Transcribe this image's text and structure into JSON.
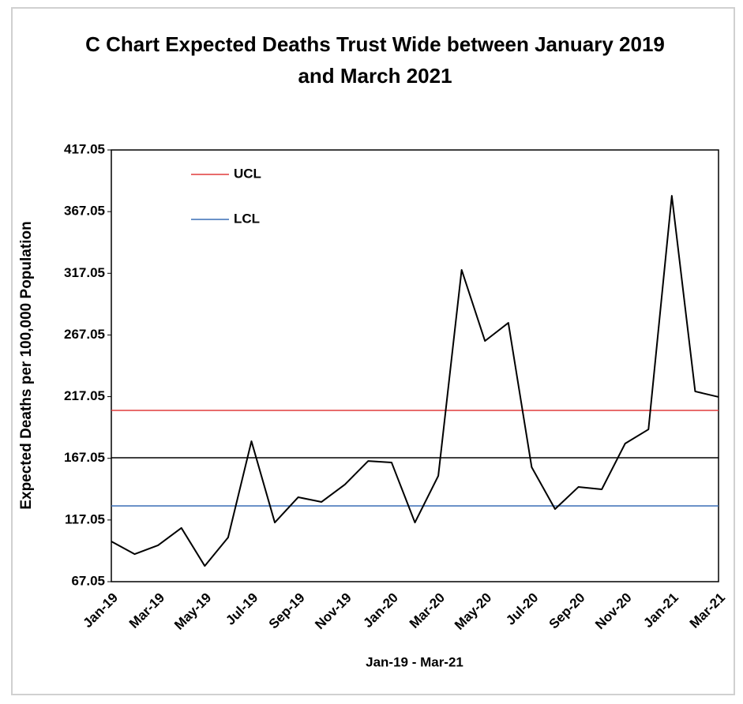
{
  "chart_data": {
    "type": "line",
    "title": "C Chart Expected Deaths Trust Wide between January 2019 and March 2021",
    "x_label": "Jan-19 - Mar-21",
    "y_label": "Expected Deaths per 100,000 Population",
    "categories": [
      "Jan-19",
      null,
      "Mar-19",
      null,
      "May-19",
      null,
      "Jul-19",
      null,
      "Sep-19",
      null,
      "Nov-19",
      null,
      "Jan-20",
      null,
      "Mar-20",
      null,
      "May-20",
      null,
      "Jul-20",
      null,
      "Sep-20",
      null,
      "Nov-20",
      null,
      "Jan-21",
      null,
      "Mar-21"
    ],
    "series": [
      {
        "color": "#000000",
        "values": [
          99.7,
          89.4,
          96.5,
          110.6,
          79.8,
          102.9,
          180.9,
          115.0,
          135.5,
          131.7,
          145.8,
          164.9,
          163.7,
          115.0,
          152.8,
          319.8,
          262.2,
          276.9,
          159.8,
          125.9,
          143.8,
          141.9,
          179.0,
          190.5,
          379.9,
          221.3,
          216.8
        ]
      }
    ],
    "hlines": [
      {
        "name": "UCL",
        "value": 205.9,
        "color": "#e03c3c"
      },
      {
        "value": 167.5,
        "color": "#000000"
      },
      {
        "name": "LCL",
        "value": 128.5,
        "color": "#3a6fb5"
      }
    ],
    "ylim": [
      67.05,
      417.05
    ],
    "yticks": [
      67.05,
      117.05,
      167.05,
      217.05,
      267.05,
      317.05,
      367.05,
      417.05
    ]
  }
}
